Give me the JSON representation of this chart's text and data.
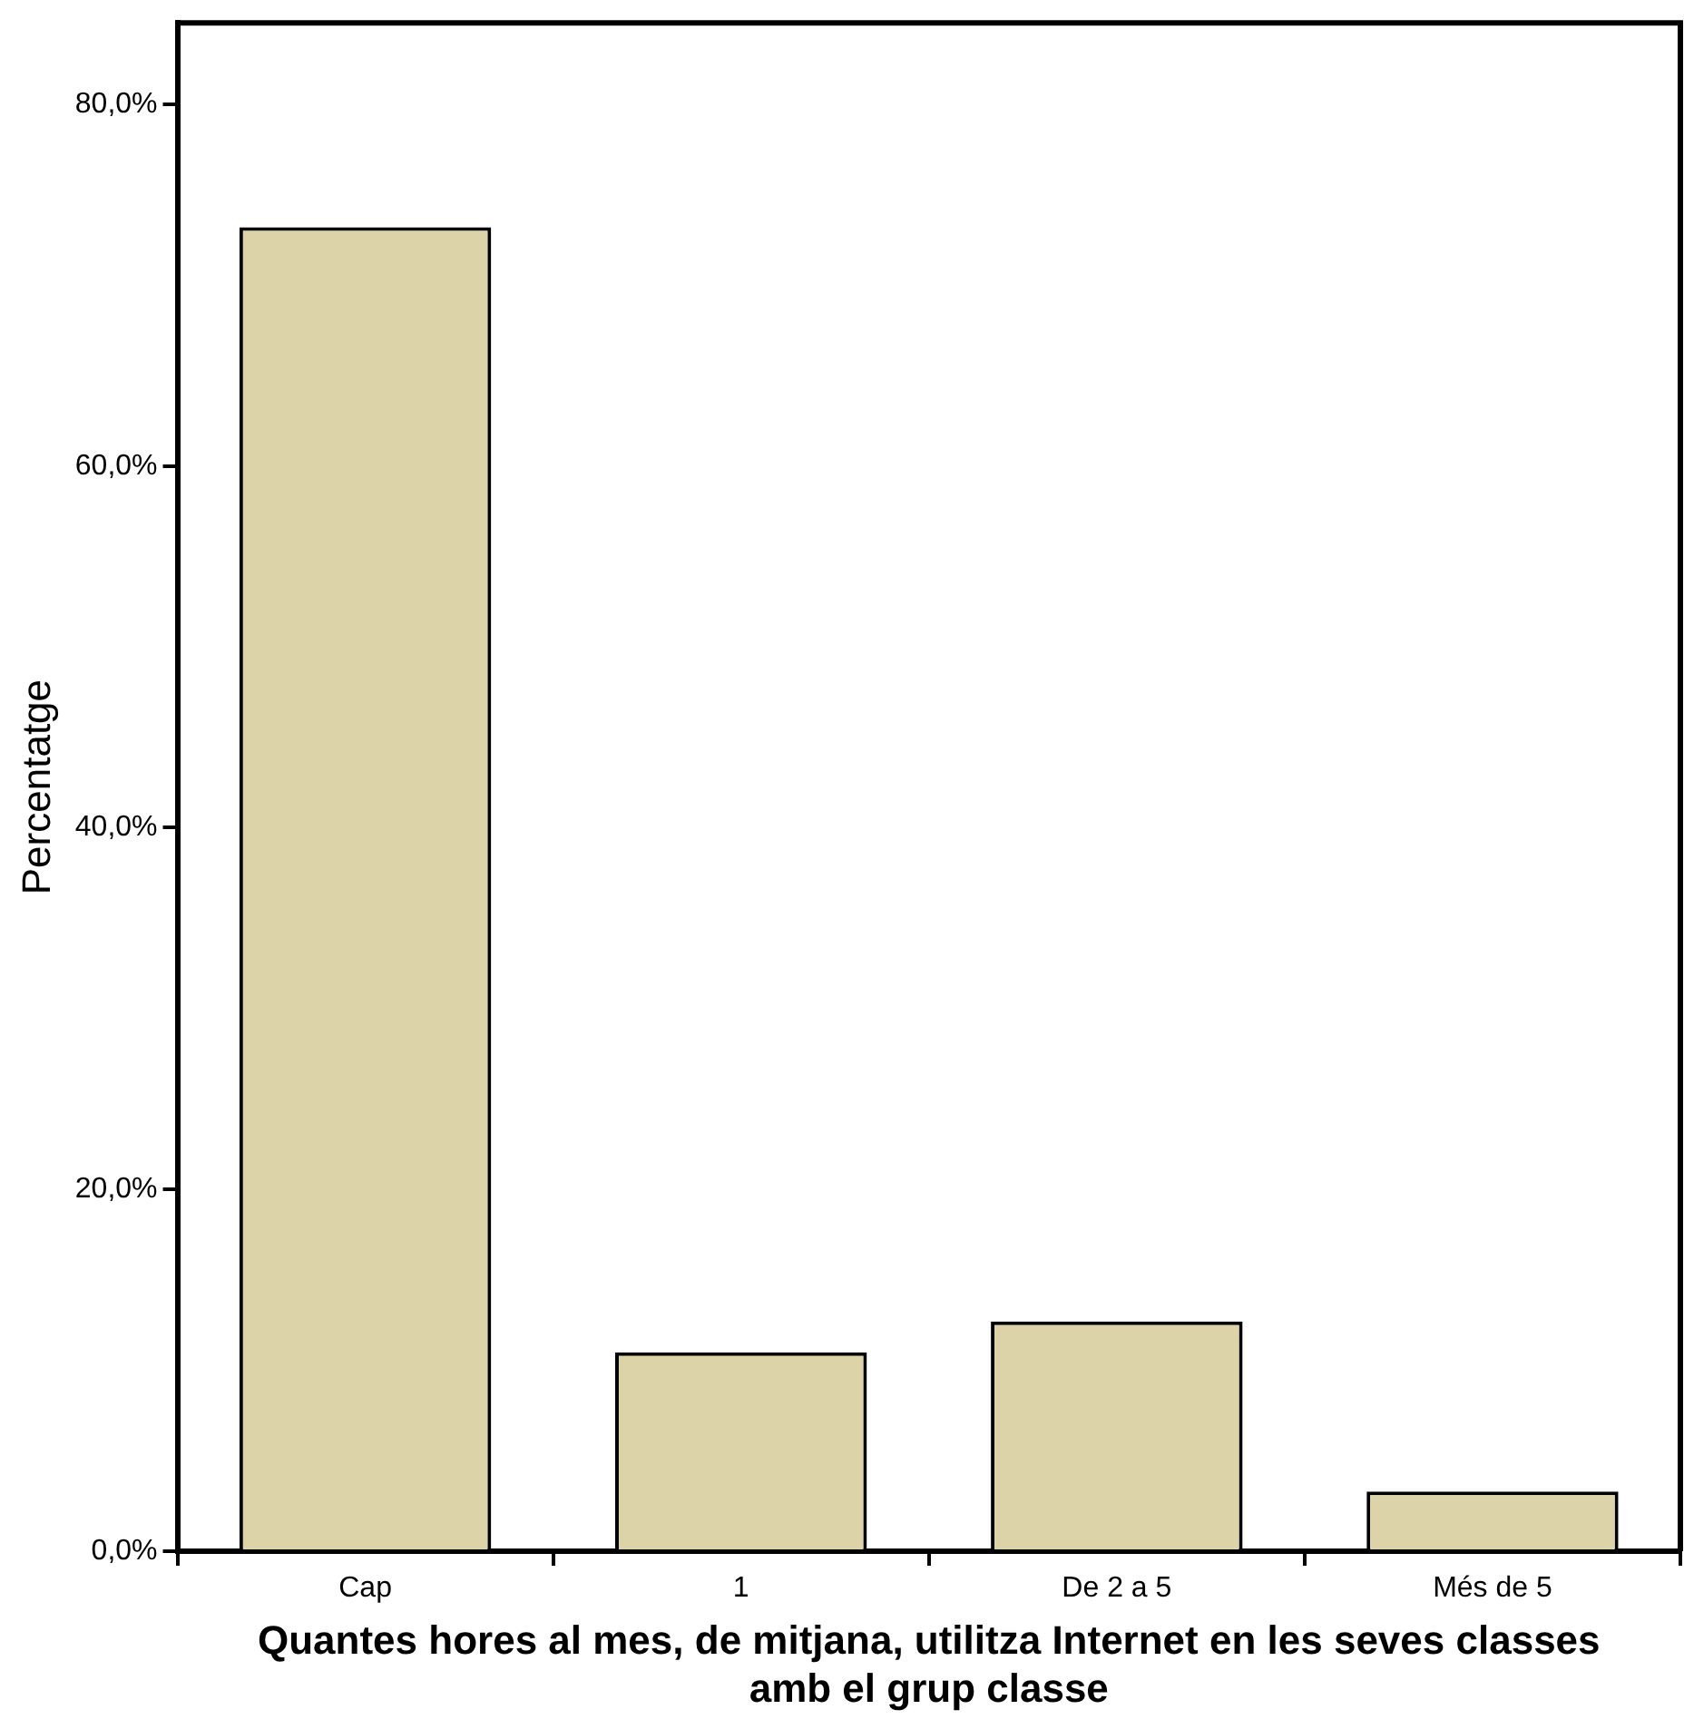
{
  "chart_data": {
    "type": "bar",
    "ylabel": "Percentatge",
    "xlabel": "Quantes hores al mes, de mitjana, utilitza Internet en les seves classes amb el grup classe",
    "categories": [
      "Cap",
      "1",
      "De 2 a 5",
      "Més de 5"
    ],
    "values": [
      73.2,
      11.0,
      12.7,
      3.3
    ],
    "color": "#dcd3a8",
    "ylim": [
      0,
      84.5
    ],
    "yticks": [
      {
        "value": 0,
        "label": "0,0%"
      },
      {
        "value": 20,
        "label": "20,0%"
      },
      {
        "value": 40,
        "label": "40,0%"
      },
      {
        "value": 60,
        "label": "60,0%"
      },
      {
        "value": 80,
        "label": "80,0%"
      }
    ],
    "grid": false,
    "legend": false
  }
}
